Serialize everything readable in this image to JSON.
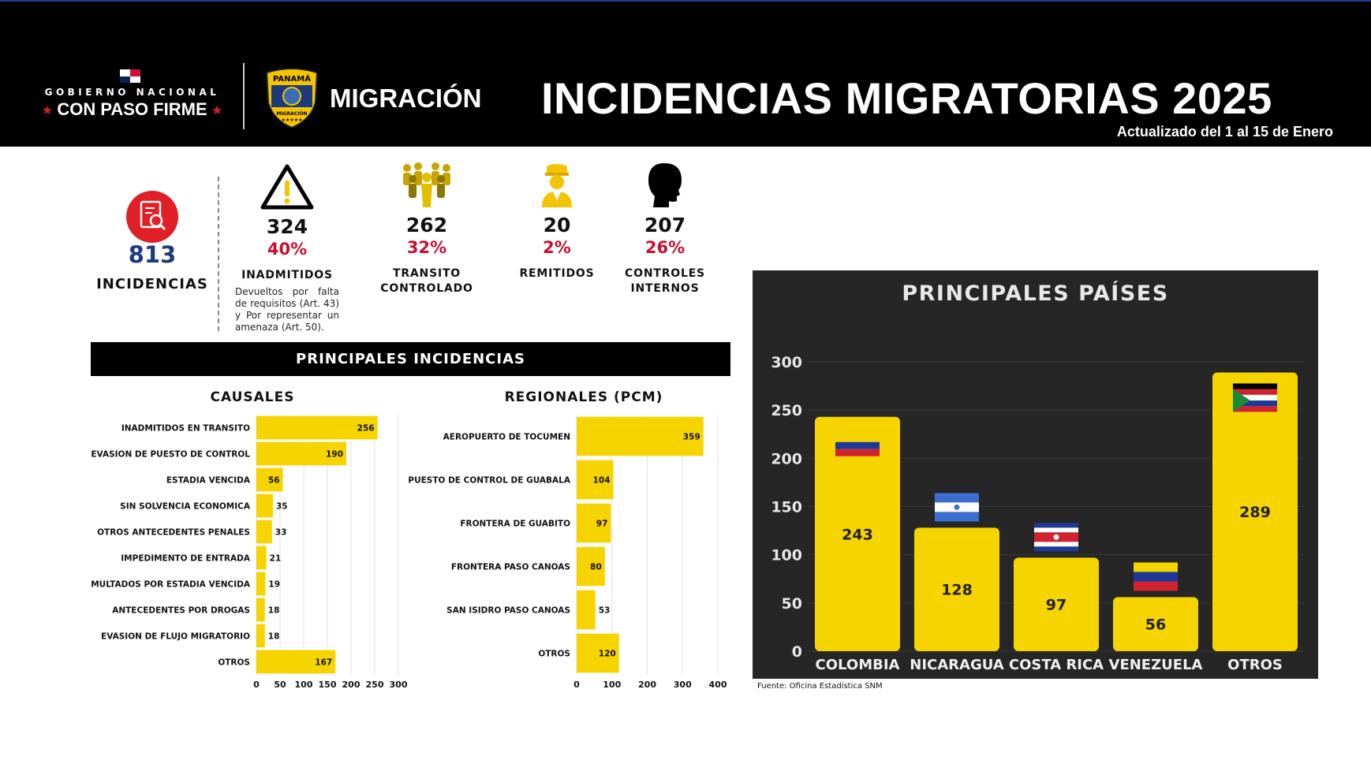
{
  "header": {
    "gov_top": "GOBIERNO NACIONAL",
    "gov_main": "CON PASO FIRME",
    "shield_text_top": "PANAMÁ",
    "shield_text_bottom": "MIGRACIÓN",
    "brand": "MIGRACIÓN",
    "title": "INCIDENCIAS MIGRATORIAS 2025",
    "updated": "Actualizado del 1 al 15 de Enero"
  },
  "kpis": {
    "total": {
      "value": "813",
      "label": "INCIDENCIAS",
      "icon": "document-search-icon"
    },
    "items": [
      {
        "value": "324",
        "pct": "40%",
        "label": "INADMITIDOS",
        "desc": "Devueltos por falta de requisitos (Art. 43) y Por representar un amenaza (Art. 50).",
        "icon": "warning-icon"
      },
      {
        "value": "262",
        "pct": "32%",
        "label": "TRANSITO CONTROLADO",
        "desc": "",
        "icon": "crowd-icon"
      },
      {
        "value": "20",
        "pct": "2%",
        "label": "REMITIDOS",
        "desc": "",
        "icon": "officer-icon"
      },
      {
        "value": "207",
        "pct": "26%",
        "label": "CONTROLES INTERNOS",
        "desc": "",
        "icon": "head-silhouette-icon"
      }
    ]
  },
  "section_title": "PRINCIPALES INCIDENCIAS",
  "panel_title": "PRINCIPALES PAÍSES",
  "source": "Fuente: Oficina Estadística SNM",
  "colors": {
    "bar": "#f5d400",
    "accent_red": "#c8102e",
    "total_blue": "#1d3a7a",
    "panel_bg": "#262626"
  },
  "chart_data": [
    {
      "type": "bar",
      "orientation": "horizontal",
      "title": "CAUSALES",
      "categories": [
        "INADMITIDOS EN TRANSITO",
        "EVASION DE PUESTO DE CONTROL",
        "ESTADIA VENCIDA",
        "SIN SOLVENCIA ECONOMICA",
        "OTROS ANTECEDENTES PENALES",
        "IMPEDIMENTO DE ENTRADA",
        "MULTADOS POR ESTADIA VENCIDA",
        "ANTECEDENTES POR DROGAS",
        "EVASION DE FLUJO MIGRATORIO",
        "OTROS"
      ],
      "values": [
        256,
        190,
        56,
        35,
        33,
        21,
        19,
        18,
        18,
        167
      ],
      "xlim": [
        0,
        300
      ],
      "xticks": [
        0,
        50,
        100,
        150,
        200,
        250,
        300
      ],
      "grid": true
    },
    {
      "type": "bar",
      "orientation": "horizontal",
      "title": "REGIONALES (PCM)",
      "categories": [
        "AEROPUERTO DE TOCUMEN",
        "PUESTO DE CONTROL DE GUABALA",
        "FRONTERA DE GUABITO",
        "FRONTERA PASO CANOAS",
        "SAN ISIDRO PASO CANOAS",
        "OTROS"
      ],
      "values": [
        359,
        104,
        97,
        80,
        53,
        120
      ],
      "xlim": [
        0,
        400
      ],
      "xticks": [
        0,
        100,
        200,
        300,
        400
      ],
      "grid": true
    },
    {
      "type": "bar",
      "orientation": "vertical",
      "categories": [
        "COLOMBIA",
        "NICARAGUA",
        "COSTA RICA",
        "VENEZUELA",
        "OTROS"
      ],
      "values": [
        243,
        128,
        97,
        56,
        289
      ],
      "ylim": [
        0,
        300
      ],
      "yticks": [
        0,
        50,
        100,
        150,
        200,
        250,
        300
      ],
      "flags": [
        "colombia-flag-icon",
        "nicaragua-flag-icon",
        "costa-rica-flag-icon",
        "venezuela-flag-icon",
        "multi-flag-icon"
      ],
      "grid": true
    }
  ]
}
